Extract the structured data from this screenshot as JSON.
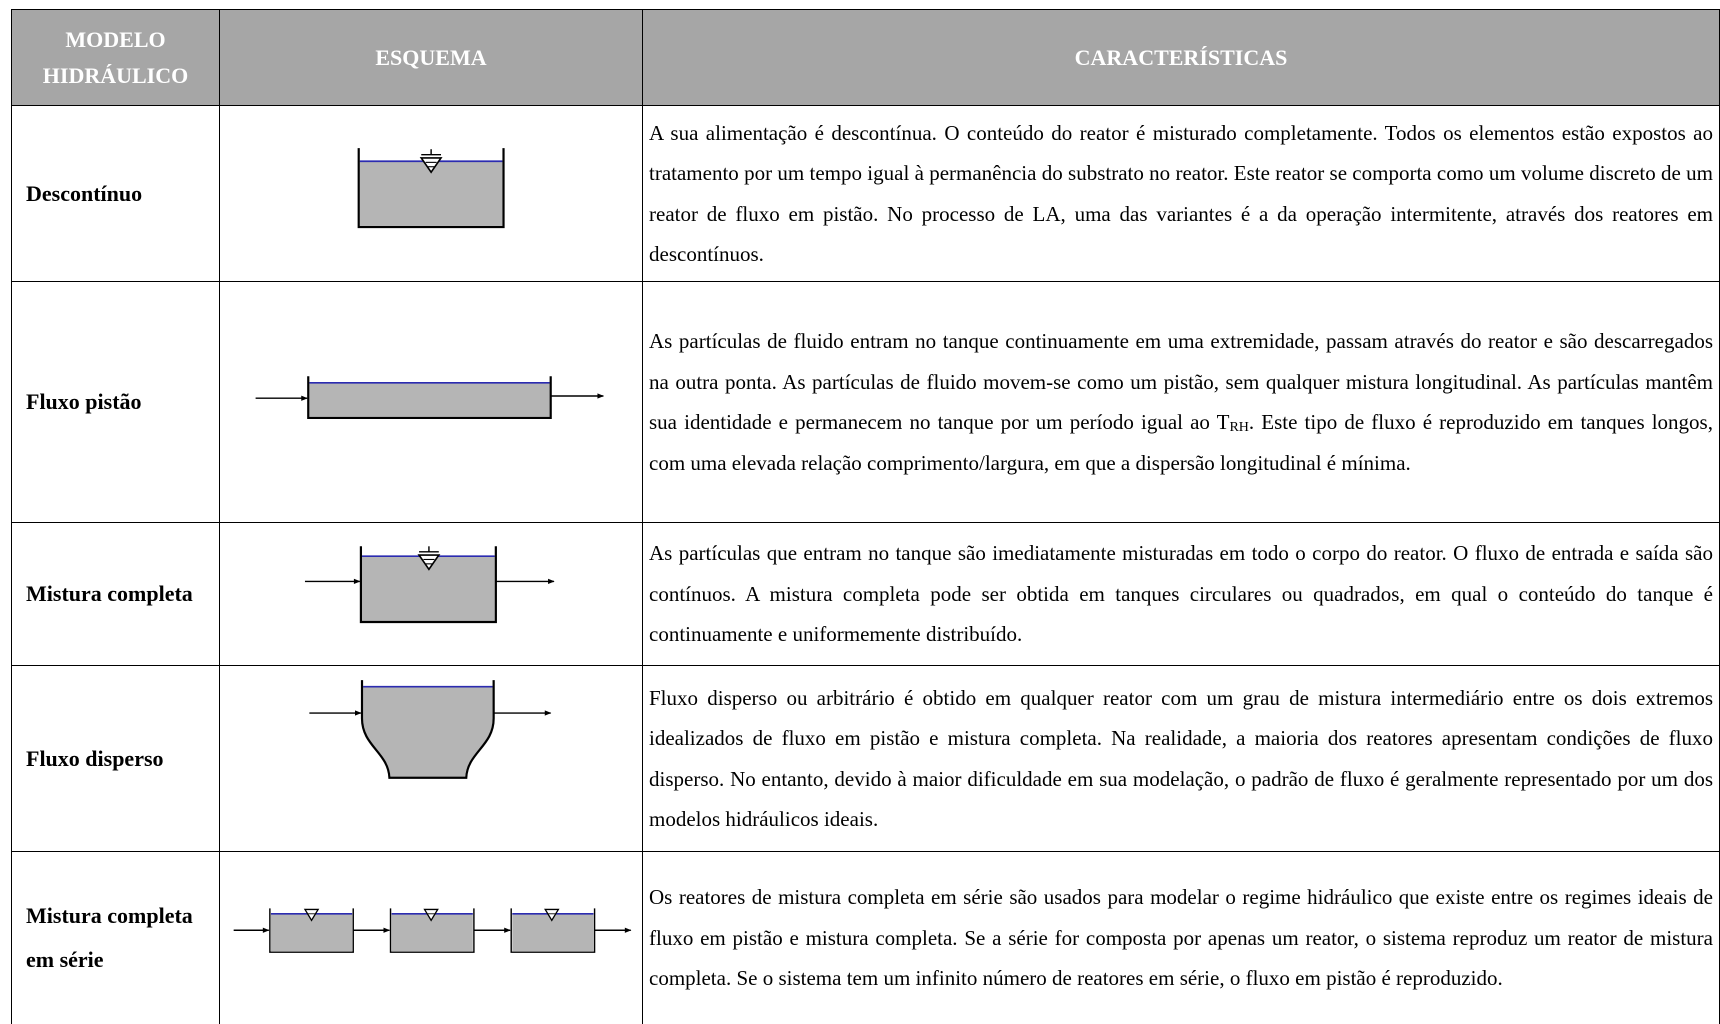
{
  "header": {
    "columns": [
      "MODELO HIDRÁULICO",
      "ESQUEMA",
      "CARACTERÍSTICAS"
    ]
  },
  "table": {
    "rows": [
      {
        "model": "Descontínuo",
        "description": "A sua alimentação é descontínua. O conteúdo do reator é misturado completamente. Todos os elementos estão expostos ao tratamento por um tempo igual à permanência do substrato no reator. Este reator se comporta como um volume discreto de um reator de fluxo em pistão. No processo de LA, uma das variantes é a da operação intermitente, através dos reatores em descontínuos."
      },
      {
        "model": "Fluxo pistão",
        "description": [
          "As partículas de fluido entram no tanque continuamente em uma extremidade, passam através do reator e são descarregados na outra ponta. As partículas de fluido movem-se como um pistão, sem qualquer mistura longitudinal. As partículas mantêm sua identidade e permanecem no tanque por um período igual ao T",
          "RH",
          ". Este tipo de fluxo é reproduzido em tanques longos, com uma elevada relação comprimento/largura, em que a dispersão longitudinal é mínima."
        ]
      },
      {
        "model": "Mistura completa",
        "description": "As partículas que entram no tanque são imediatamente misturadas em todo o corpo do reator. O fluxo de entrada e saída são contínuos. A mistura completa pode ser obtida em tanques circulares ou quadrados, em qual o conteúdo do tanque é continuamente e uniformemente distribuído."
      },
      {
        "model": "Fluxo disperso",
        "description": "Fluxo disperso ou arbitrário é obtido em qualquer reator com um grau de mistura intermediário entre os dois extremos idealizados de fluxo em pistão e mistura completa. Na realidade, a maioria dos reatores apresentam condições de fluxo disperso. No entanto, devido à maior dificuldade em sua modelação, o padrão de fluxo é geralmente representado por um dos modelos hidráulicos ideais."
      },
      {
        "model": "Mistura completa em série",
        "description": "Os reatores de mistura completa em série são usados para modelar o regime hidráulico que existe entre os regimes ideais de fluxo em pistão e mistura completa. Se a série for composta por apenas um reator, o sistema reproduz um reator de mistura completa. Se o sistema tem um infinito número de reatores em série, o fluxo em pistão é reproduzido."
      }
    ]
  }
}
